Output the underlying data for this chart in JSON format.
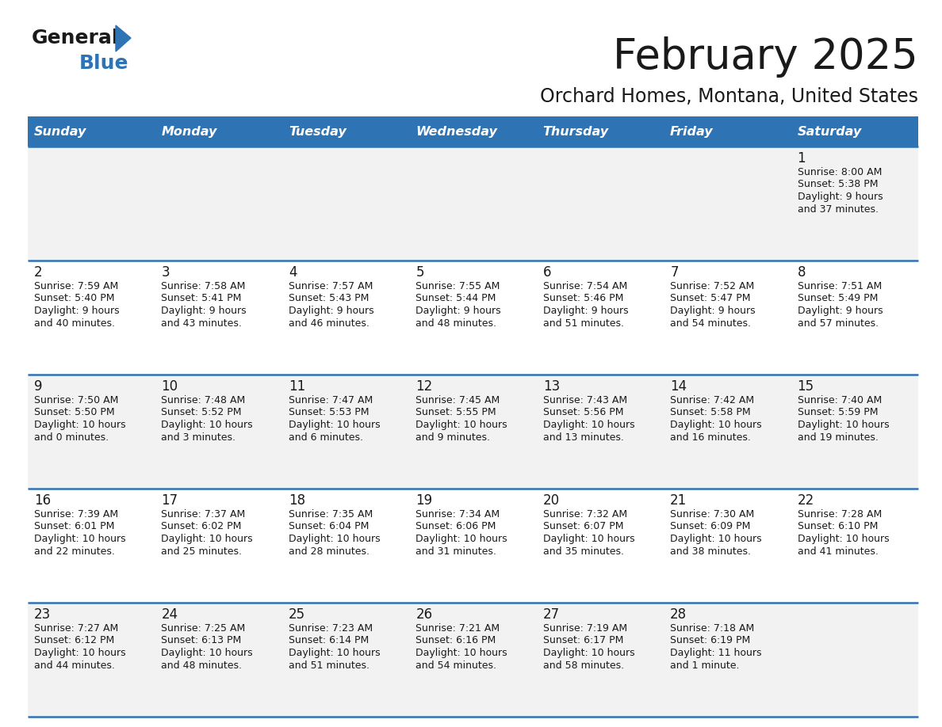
{
  "title": "February 2025",
  "subtitle": "Orchard Homes, Montana, United States",
  "header_bg": "#2E74B5",
  "header_text": "#FFFFFF",
  "row_bg_light": "#F2F2F2",
  "row_bg_white": "#FFFFFF",
  "border_color": "#2E74B5",
  "day_headers": [
    "Sunday",
    "Monday",
    "Tuesday",
    "Wednesday",
    "Thursday",
    "Friday",
    "Saturday"
  ],
  "title_color": "#1A1A1A",
  "subtitle_color": "#1A1A1A",
  "logo_general_color": "#1A1A1A",
  "logo_blue_color": "#2E74B5",
  "logo_triangle_color": "#2E74B5",
  "days": [
    {
      "day": 1,
      "col": 6,
      "row": 0,
      "sunrise": "8:00 AM",
      "sunset": "5:38 PM",
      "daylight": "9 hours",
      "daylight2": "and 37 minutes."
    },
    {
      "day": 2,
      "col": 0,
      "row": 1,
      "sunrise": "7:59 AM",
      "sunset": "5:40 PM",
      "daylight": "9 hours",
      "daylight2": "and 40 minutes."
    },
    {
      "day": 3,
      "col": 1,
      "row": 1,
      "sunrise": "7:58 AM",
      "sunset": "5:41 PM",
      "daylight": "9 hours",
      "daylight2": "and 43 minutes."
    },
    {
      "day": 4,
      "col": 2,
      "row": 1,
      "sunrise": "7:57 AM",
      "sunset": "5:43 PM",
      "daylight": "9 hours",
      "daylight2": "and 46 minutes."
    },
    {
      "day": 5,
      "col": 3,
      "row": 1,
      "sunrise": "7:55 AM",
      "sunset": "5:44 PM",
      "daylight": "9 hours",
      "daylight2": "and 48 minutes."
    },
    {
      "day": 6,
      "col": 4,
      "row": 1,
      "sunrise": "7:54 AM",
      "sunset": "5:46 PM",
      "daylight": "9 hours",
      "daylight2": "and 51 minutes."
    },
    {
      "day": 7,
      "col": 5,
      "row": 1,
      "sunrise": "7:52 AM",
      "sunset": "5:47 PM",
      "daylight": "9 hours",
      "daylight2": "and 54 minutes."
    },
    {
      "day": 8,
      "col": 6,
      "row": 1,
      "sunrise": "7:51 AM",
      "sunset": "5:49 PM",
      "daylight": "9 hours",
      "daylight2": "and 57 minutes."
    },
    {
      "day": 9,
      "col": 0,
      "row": 2,
      "sunrise": "7:50 AM",
      "sunset": "5:50 PM",
      "daylight": "10 hours",
      "daylight2": "and 0 minutes."
    },
    {
      "day": 10,
      "col": 1,
      "row": 2,
      "sunrise": "7:48 AM",
      "sunset": "5:52 PM",
      "daylight": "10 hours",
      "daylight2": "and 3 minutes."
    },
    {
      "day": 11,
      "col": 2,
      "row": 2,
      "sunrise": "7:47 AM",
      "sunset": "5:53 PM",
      "daylight": "10 hours",
      "daylight2": "and 6 minutes."
    },
    {
      "day": 12,
      "col": 3,
      "row": 2,
      "sunrise": "7:45 AM",
      "sunset": "5:55 PM",
      "daylight": "10 hours",
      "daylight2": "and 9 minutes."
    },
    {
      "day": 13,
      "col": 4,
      "row": 2,
      "sunrise": "7:43 AM",
      "sunset": "5:56 PM",
      "daylight": "10 hours",
      "daylight2": "and 13 minutes."
    },
    {
      "day": 14,
      "col": 5,
      "row": 2,
      "sunrise": "7:42 AM",
      "sunset": "5:58 PM",
      "daylight": "10 hours",
      "daylight2": "and 16 minutes."
    },
    {
      "day": 15,
      "col": 6,
      "row": 2,
      "sunrise": "7:40 AM",
      "sunset": "5:59 PM",
      "daylight": "10 hours",
      "daylight2": "and 19 minutes."
    },
    {
      "day": 16,
      "col": 0,
      "row": 3,
      "sunrise": "7:39 AM",
      "sunset": "6:01 PM",
      "daylight": "10 hours",
      "daylight2": "and 22 minutes."
    },
    {
      "day": 17,
      "col": 1,
      "row": 3,
      "sunrise": "7:37 AM",
      "sunset": "6:02 PM",
      "daylight": "10 hours",
      "daylight2": "and 25 minutes."
    },
    {
      "day": 18,
      "col": 2,
      "row": 3,
      "sunrise": "7:35 AM",
      "sunset": "6:04 PM",
      "daylight": "10 hours",
      "daylight2": "and 28 minutes."
    },
    {
      "day": 19,
      "col": 3,
      "row": 3,
      "sunrise": "7:34 AM",
      "sunset": "6:06 PM",
      "daylight": "10 hours",
      "daylight2": "and 31 minutes."
    },
    {
      "day": 20,
      "col": 4,
      "row": 3,
      "sunrise": "7:32 AM",
      "sunset": "6:07 PM",
      "daylight": "10 hours",
      "daylight2": "and 35 minutes."
    },
    {
      "day": 21,
      "col": 5,
      "row": 3,
      "sunrise": "7:30 AM",
      "sunset": "6:09 PM",
      "daylight": "10 hours",
      "daylight2": "and 38 minutes."
    },
    {
      "day": 22,
      "col": 6,
      "row": 3,
      "sunrise": "7:28 AM",
      "sunset": "6:10 PM",
      "daylight": "10 hours",
      "daylight2": "and 41 minutes."
    },
    {
      "day": 23,
      "col": 0,
      "row": 4,
      "sunrise": "7:27 AM",
      "sunset": "6:12 PM",
      "daylight": "10 hours",
      "daylight2": "and 44 minutes."
    },
    {
      "day": 24,
      "col": 1,
      "row": 4,
      "sunrise": "7:25 AM",
      "sunset": "6:13 PM",
      "daylight": "10 hours",
      "daylight2": "and 48 minutes."
    },
    {
      "day": 25,
      "col": 2,
      "row": 4,
      "sunrise": "7:23 AM",
      "sunset": "6:14 PM",
      "daylight": "10 hours",
      "daylight2": "and 51 minutes."
    },
    {
      "day": 26,
      "col": 3,
      "row": 4,
      "sunrise": "7:21 AM",
      "sunset": "6:16 PM",
      "daylight": "10 hours",
      "daylight2": "and 54 minutes."
    },
    {
      "day": 27,
      "col": 4,
      "row": 4,
      "sunrise": "7:19 AM",
      "sunset": "6:17 PM",
      "daylight": "10 hours",
      "daylight2": "and 58 minutes."
    },
    {
      "day": 28,
      "col": 5,
      "row": 4,
      "sunrise": "7:18 AM",
      "sunset": "6:19 PM",
      "daylight": "11 hours",
      "daylight2": "and 1 minute."
    }
  ]
}
